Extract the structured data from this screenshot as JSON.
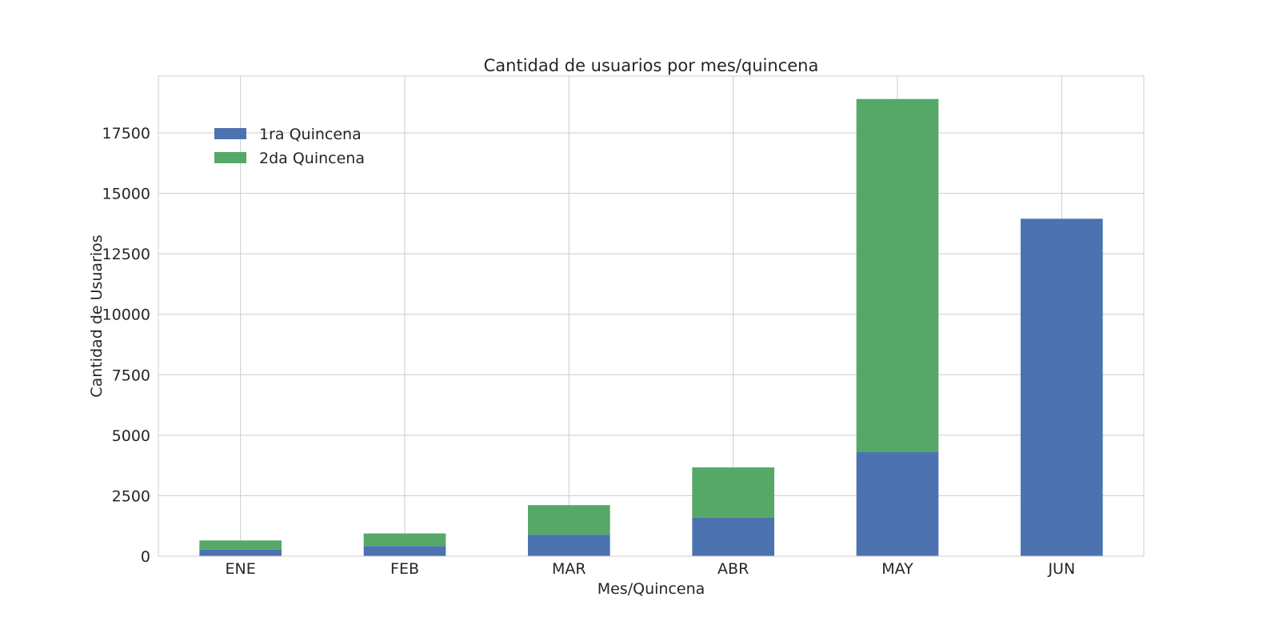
{
  "colors": {
    "series_1": "#4c72b0",
    "series_2": "#55a868",
    "grid": "#cccccc",
    "axes_edge": "#cccccc",
    "text": "#262626",
    "background": "#ffffff"
  },
  "chart_data": {
    "type": "bar",
    "stacked": true,
    "title": "Cantidad de usuarios por mes/quincena",
    "xlabel": "Mes/Quincena",
    "ylabel": "Cantidad de Usuarios",
    "categories": [
      "ENE",
      "FEB",
      "MAR",
      "ABR",
      "MAY",
      "JUN"
    ],
    "series": [
      {
        "name": "1ra Quincena",
        "values": [
          270,
          420,
          880,
          1600,
          4300,
          13950
        ]
      },
      {
        "name": "2da Quincena",
        "values": [
          380,
          520,
          1230,
          2070,
          14600,
          0
        ]
      }
    ],
    "ylim": [
      0,
      19850
    ],
    "yticks": [
      0,
      2500,
      5000,
      7500,
      10000,
      12500,
      15000,
      17500
    ],
    "ytick_labels": [
      "0",
      "2500",
      "5000",
      "7500",
      "10000",
      "12500",
      "15000",
      "17500"
    ],
    "grid": true,
    "legend_position": "upper-left"
  }
}
